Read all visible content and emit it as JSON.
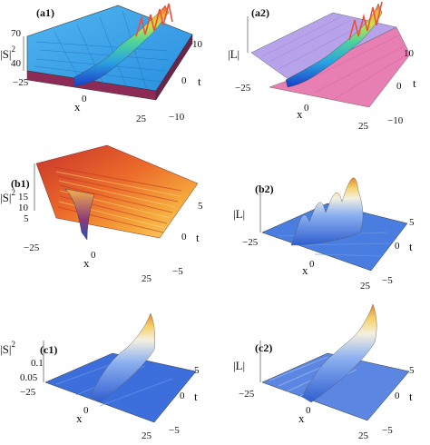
{
  "figure": {
    "panels": [
      {
        "id": "a1",
        "label": "(a1)",
        "zlabel": "|S|",
        "zlabel_sup": "2",
        "xlabel": "x",
        "ylabel": "t",
        "z_ticks": [
          "70",
          "40"
        ],
        "x_ticks": [
          "−25",
          "0",
          "25"
        ],
        "t_ticks": [
          "10",
          "0",
          "−10"
        ],
        "style": "rainbow"
      },
      {
        "id": "a2",
        "label": "(a2)",
        "zlabel": "|L|",
        "zlabel_sup": "",
        "xlabel": "x",
        "ylabel": "t",
        "z_ticks": [],
        "x_ticks": [
          "−25",
          "0",
          "25"
        ],
        "t_ticks": [
          "10",
          "0",
          "−10"
        ],
        "style": "rainbow-pink"
      },
      {
        "id": "b1",
        "label": "(b1)",
        "zlabel": "|S|",
        "zlabel_sup": "2",
        "xlabel": "x",
        "ylabel": "t",
        "z_ticks": [
          "15",
          "10",
          "5"
        ],
        "x_ticks": [
          "−25",
          "0",
          "25"
        ],
        "t_ticks": [
          "5",
          "0",
          "−5"
        ],
        "style": "hot"
      },
      {
        "id": "b2",
        "label": "(b2)",
        "zlabel": "|L|",
        "zlabel_sup": "",
        "xlabel": "x",
        "ylabel": "t",
        "z_ticks": [],
        "x_ticks": [
          "−25",
          "0",
          "25"
        ],
        "t_ticks": [
          "5",
          "0",
          "−5"
        ],
        "style": "blue"
      },
      {
        "id": "c1",
        "label": "(c1)",
        "zlabel": "|S|",
        "zlabel_sup": "2",
        "xlabel": "x",
        "ylabel": "t",
        "z_ticks": [
          "0.1",
          "0.05"
        ],
        "x_ticks": [
          "−25",
          "0",
          "25"
        ],
        "t_ticks": [
          "5",
          "0",
          "−5"
        ],
        "style": "blue"
      },
      {
        "id": "c2",
        "label": "(c2)",
        "zlabel": "|L|",
        "zlabel_sup": "",
        "xlabel": "x",
        "ylabel": "t",
        "z_ticks": [],
        "x_ticks": [
          "−25",
          "0",
          "25"
        ],
        "t_ticks": [
          "5",
          "0",
          "−5"
        ],
        "style": "blue"
      }
    ]
  },
  "chart_data": [
    {
      "type": "surface3d",
      "panel": "(a1)",
      "x_range": [
        -25,
        25
      ],
      "t_range": [
        -10,
        10
      ],
      "z_range": [
        40,
        70
      ],
      "description_values": {
        "background_level": 50
      }
    },
    {
      "type": "surface3d",
      "panel": "(a2)",
      "x_range": [
        -25,
        25
      ],
      "t_range": [
        -10,
        10
      ]
    },
    {
      "type": "surface3d",
      "panel": "(b1)",
      "x_range": [
        -25,
        25
      ],
      "t_range": [
        -5,
        5
      ],
      "z_range": [
        5,
        15
      ]
    },
    {
      "type": "surface3d",
      "panel": "(b2)",
      "x_range": [
        -25,
        25
      ],
      "t_range": [
        -5,
        5
      ]
    },
    {
      "type": "surface3d",
      "panel": "(c1)",
      "x_range": [
        -25,
        25
      ],
      "t_range": [
        -5,
        5
      ],
      "z_range": [
        0,
        0.1
      ]
    },
    {
      "type": "surface3d",
      "panel": "(c2)",
      "x_range": [
        -25,
        25
      ],
      "t_range": [
        -5,
        5
      ]
    }
  ],
  "colors": {
    "rainbow": [
      "#1c3cc8",
      "#2aa3e0",
      "#4fd39a",
      "#c7e24a",
      "#f3b23a",
      "#e8503a"
    ],
    "pink": "#e87fb2",
    "lavender": "#b7a3ea",
    "hot": [
      "#6a1b6a",
      "#c7332b",
      "#ec6b2a",
      "#f6a93c",
      "#f8d670"
    ],
    "blue": [
      "#2f5fd0",
      "#4a7de0",
      "#8cb0f0",
      "#e9eef8",
      "#f5d36b",
      "#e6842f"
    ]
  }
}
